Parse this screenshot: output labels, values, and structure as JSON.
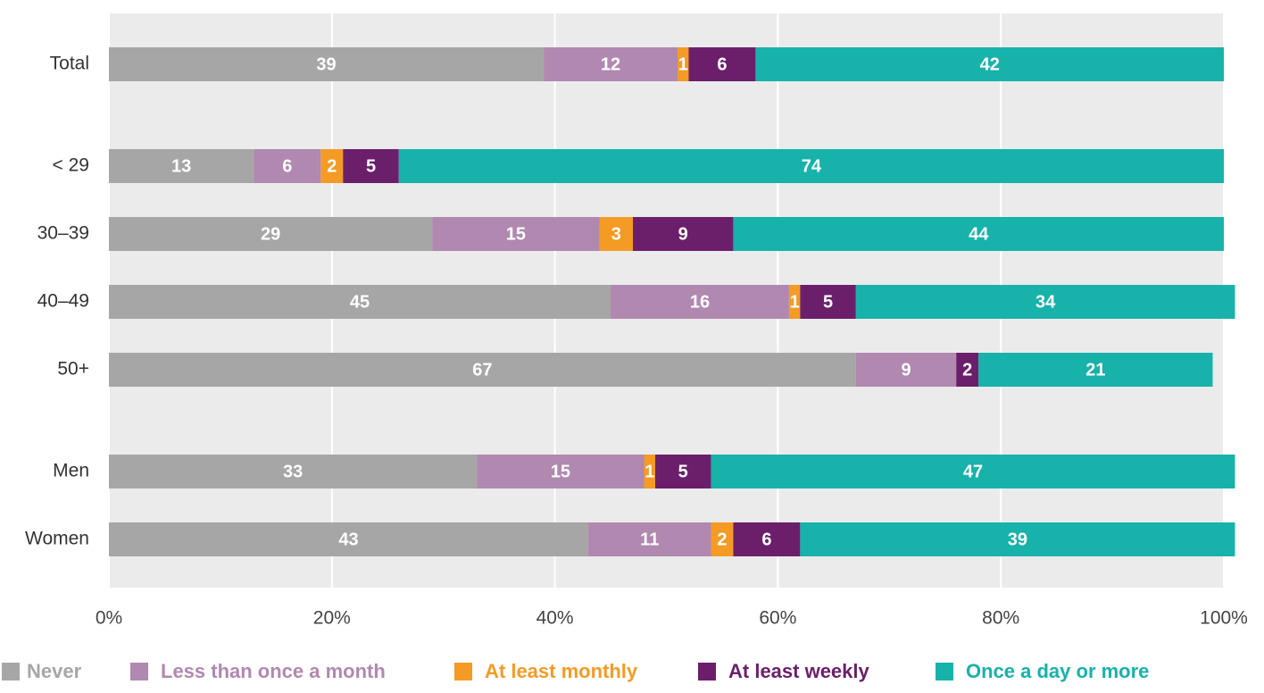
{
  "chart_data": {
    "type": "stacked_bar_horizontal",
    "categories": [
      "Total",
      null,
      "< 29",
      "30–39",
      "40–49",
      "50+",
      null,
      "Men",
      "Women"
    ],
    "series": [
      {
        "name": "Never",
        "color": "#a6a6a6",
        "values": [
          39,
          null,
          13,
          29,
          45,
          67,
          null,
          33,
          43
        ]
      },
      {
        "name": "Less than once a month",
        "color": "#b088b0",
        "values": [
          12,
          null,
          6,
          15,
          16,
          9,
          null,
          15,
          11
        ]
      },
      {
        "name": "At least monthly",
        "color": "#f49b25",
        "values": [
          1,
          null,
          2,
          3,
          1,
          null,
          null,
          1,
          2
        ]
      },
      {
        "name": "At least weekly",
        "color": "#6b1f6b",
        "values": [
          6,
          null,
          5,
          9,
          5,
          2,
          null,
          5,
          6
        ]
      },
      {
        "name": "Once a day or more",
        "color": "#17b2aa",
        "values": [
          42,
          null,
          74,
          44,
          34,
          21,
          null,
          47,
          39
        ]
      }
    ],
    "xlim": [
      0,
      100
    ],
    "xticks": [
      {
        "value": 0,
        "label": "0%"
      },
      {
        "value": 20,
        "label": "20%"
      },
      {
        "value": 40,
        "label": "40%"
      },
      {
        "value": 60,
        "label": "60%"
      },
      {
        "value": 80,
        "label": "80%"
      },
      {
        "value": 100,
        "label": "100%"
      }
    ],
    "grid": true,
    "legend": "bottom"
  }
}
